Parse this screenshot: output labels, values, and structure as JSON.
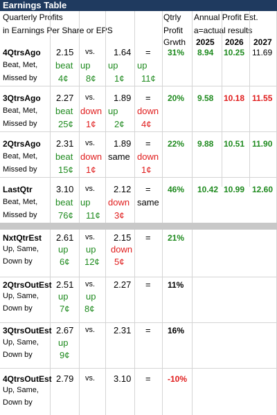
{
  "title": "Earnings Table",
  "header": {
    "line1": "Quarterly Profits",
    "line2": "in Earnings Per Share or EPS",
    "qtrly1": "Qtrly",
    "qtrly2": "Profit",
    "qtrly3": "Grwth",
    "annual1": "Annual Profit Est.",
    "annual2": "a=actual results",
    "y1": "2025",
    "y2": "2026",
    "y3": "2027"
  },
  "rows": [
    {
      "label": "4QtrsAgo",
      "a": "2.15",
      "vs": "vs.",
      "b": "1.64",
      "eq": "=",
      "pct": "31%",
      "e1": "8.94",
      "e2": "10.25",
      "e3": "11.69",
      "r2a": "Beat, Met,",
      "r2b": "beat",
      "r2c": "up",
      "r2d": "up",
      "r2e": "up",
      "r3a": "Missed by",
      "r3b": "4¢",
      "r3c": "8¢",
      "r3d": "1¢",
      "r3e": "11¢"
    },
    {
      "label": "3QtrsAgo",
      "a": "2.27",
      "vs": "vs.",
      "b": "1.89",
      "eq": "=",
      "pct": "20%",
      "e1": "9.58",
      "e2": "10.18",
      "e3": "11.55",
      "r2a": "Beat, Met,",
      "r2b": "beat",
      "r2c": "down",
      "r2d": "up",
      "r2e": "down",
      "r3a": "Missed by",
      "r3b": "25¢",
      "r3c": "1¢",
      "r3d": "2¢",
      "r3e": "4¢"
    },
    {
      "label": "2QtrsAgo",
      "a": "2.31",
      "vs": "vs.",
      "b": "1.89",
      "eq": "=",
      "pct": "22%",
      "e1": "9.88",
      "e2": "10.51",
      "e3": "11.90",
      "r2a": "Beat, Met,",
      "r2b": "beat",
      "r2c": "down",
      "r2d": "same",
      "r2e": "down",
      "r3a": "Missed by",
      "r3b": "15¢",
      "r3c": "1¢",
      "r3d": "",
      "r3e": "1¢"
    },
    {
      "label": "LastQtr",
      "a": "3.10",
      "vs": "vs.",
      "b": "2.12",
      "eq": "=",
      "pct": "46%",
      "e1": "10.42",
      "e2": "10.99",
      "e3": "12.60",
      "r2a": "Beat, Met,",
      "r2b": "beat",
      "r2c": "up",
      "r2d": "down",
      "r2e": "same",
      "r3a": "Missed by",
      "r3b": "76¢",
      "r3c": "11¢",
      "r3d": "3¢",
      "r3e": ""
    }
  ],
  "est_rows": [
    {
      "label": "NxtQtrEst",
      "a": "2.61",
      "vs": "vs.",
      "b": "2.15",
      "eq": "=",
      "pct": "21%",
      "r2a": "Up, Same,",
      "r2b": "up",
      "r2c": "up",
      "r2d": "down",
      "r3a": "Down by",
      "r3b": "6¢",
      "r3c": "12¢",
      "r3d": "5¢"
    },
    {
      "label": "2QtrsOutEst",
      "a": "2.51",
      "vs": "vs.",
      "b": "2.27",
      "eq": "=",
      "pct": "11%",
      "r2a": "Up, Same,",
      "r2b": "up",
      "r2c": "up",
      "r3a": "Down by",
      "r3b": "7¢",
      "r3c": "8¢"
    },
    {
      "label": "3QtrsOutEst",
      "a": "2.67",
      "vs": "vs.",
      "b": "2.31",
      "eq": "=",
      "pct": "16%",
      "r2a": "Up, Same,",
      "r2b": "up",
      "r3a": "Down by",
      "r3b": "9¢"
    },
    {
      "label": "4QtrsOutEst",
      "a": "2.79",
      "vs": "vs.",
      "b": "3.10",
      "eq": "=",
      "pct": "-10%",
      "r2a": "Up, Same,",
      "r3a": "Down by"
    }
  ],
  "colors": {
    "title_bg": "#1f3a5f",
    "green": "#1e8a1e",
    "red": "#e01b1b",
    "band": "#c8c8c8"
  }
}
